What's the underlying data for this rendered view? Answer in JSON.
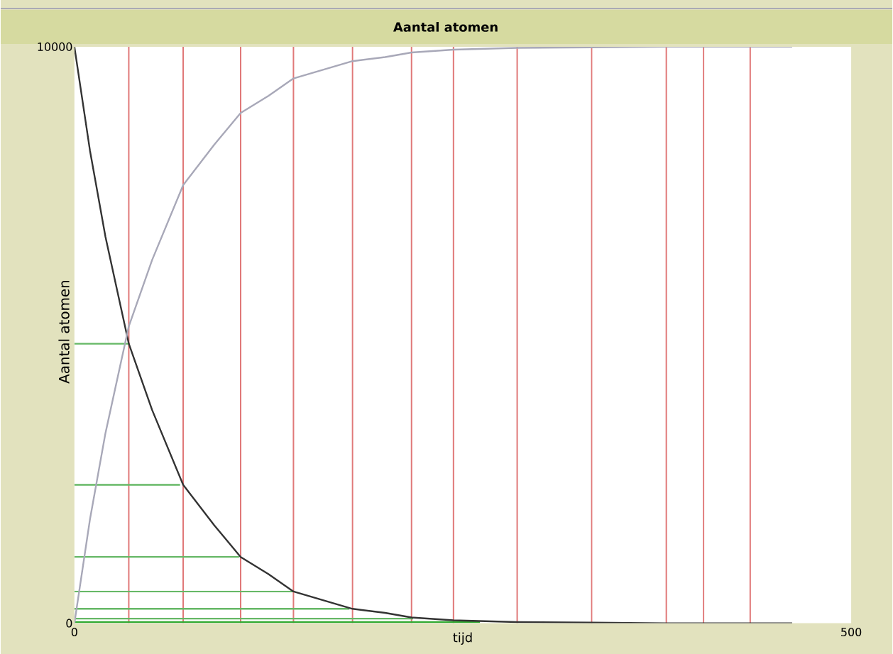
{
  "chart_data": {
    "type": "line",
    "title": "Aantal atomen",
    "xlabel": "tijd",
    "ylabel": "Aantal atomen",
    "xlim": [
      0,
      500
    ],
    "ylim": [
      0,
      10000
    ],
    "xticks": [
      0,
      500
    ],
    "yticks": [
      0,
      10000
    ],
    "grid": false,
    "marker": "none",
    "line_style": "solid",
    "series": [
      {
        "color": "#333333",
        "x": [
          0,
          10,
          20,
          35,
          50,
          70,
          90,
          107,
          125,
          141,
          160,
          179,
          200,
          217,
          244,
          285,
          333,
          381,
          435,
          462
        ],
        "values": [
          10000,
          8200,
          6700,
          4850,
          3700,
          2400,
          1700,
          1150,
          850,
          550,
          400,
          250,
          180,
          100,
          50,
          20,
          10,
          0,
          0,
          0
        ]
      },
      {
        "color": "#a8a8b8",
        "x": [
          0,
          10,
          20,
          35,
          50,
          70,
          90,
          107,
          125,
          141,
          160,
          179,
          200,
          217,
          244,
          285,
          333,
          381,
          435,
          462
        ],
        "values": [
          0,
          1800,
          3300,
          5150,
          6300,
          7600,
          8300,
          8850,
          9150,
          9450,
          9600,
          9750,
          9820,
          9900,
          9950,
          9980,
          9990,
          10000,
          10000,
          10000
        ]
      },
      {
        "color": "#66b866",
        "x": [
          0,
          35
        ],
        "values": [
          4850,
          4850
        ]
      },
      {
        "color": "#66b866",
        "x": [
          0,
          68
        ],
        "values": [
          2400,
          2400
        ]
      },
      {
        "color": "#66b866",
        "x": [
          0,
          106
        ],
        "values": [
          1150,
          1150
        ]
      },
      {
        "color": "#66b866",
        "x": [
          0,
          141
        ],
        "values": [
          550,
          550
        ]
      },
      {
        "color": "#66b866",
        "x": [
          0,
          177
        ],
        "values": [
          250,
          250
        ]
      },
      {
        "color": "#66b866",
        "x": [
          0,
          218
        ],
        "values": [
          80,
          80
        ]
      },
      {
        "color": "#33aa33",
        "x": [
          0,
          261
        ],
        "values": [
          20,
          20
        ]
      }
    ],
    "ref_lines": [
      {
        "axis": "x",
        "value": 35,
        "color": "#e07878"
      },
      {
        "axis": "x",
        "value": 70,
        "color": "#e07878"
      },
      {
        "axis": "x",
        "value": 107,
        "color": "#e07878"
      },
      {
        "axis": "x",
        "value": 141,
        "color": "#e07878"
      },
      {
        "axis": "x",
        "value": 179,
        "color": "#e07878"
      },
      {
        "axis": "x",
        "value": 217,
        "color": "#e07878"
      },
      {
        "axis": "x",
        "value": 244,
        "color": "#e07878"
      },
      {
        "axis": "x",
        "value": 285,
        "color": "#e07878"
      },
      {
        "axis": "x",
        "value": 333,
        "color": "#e07878"
      },
      {
        "axis": "x",
        "value": 381,
        "color": "#e07878"
      },
      {
        "axis": "x",
        "value": 405,
        "color": "#e07878"
      },
      {
        "axis": "x",
        "value": 435,
        "color": "#e07878"
      }
    ]
  }
}
